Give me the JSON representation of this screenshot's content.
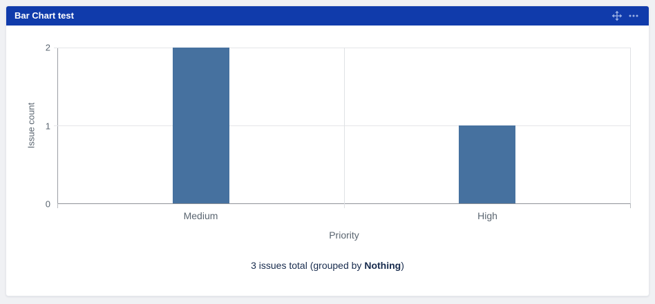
{
  "header": {
    "title": "Bar Chart test",
    "icons": [
      "move-icon",
      "more-options-icon"
    ]
  },
  "chart_data": {
    "type": "bar",
    "title": "Bar Chart test",
    "categories": [
      "Medium",
      "High"
    ],
    "values": [
      2,
      1
    ],
    "xlabel": "Priority",
    "ylabel": "Issue count",
    "ylim": [
      0,
      2
    ],
    "yticks": [
      0,
      1,
      2
    ],
    "grid": true,
    "legend": false,
    "bar_color": "#46719f"
  },
  "footer": {
    "text_prefix": "3 issues total (grouped by ",
    "group_by": "Nothing",
    "text_suffix": ")"
  },
  "colors": {
    "header_bg": "#103bab",
    "header_icon": "#9db3e6",
    "bar": "#46719f",
    "footer_text": "#172b4d",
    "axis_text": "#5a6570",
    "page_bg": "#f0f1f4"
  }
}
